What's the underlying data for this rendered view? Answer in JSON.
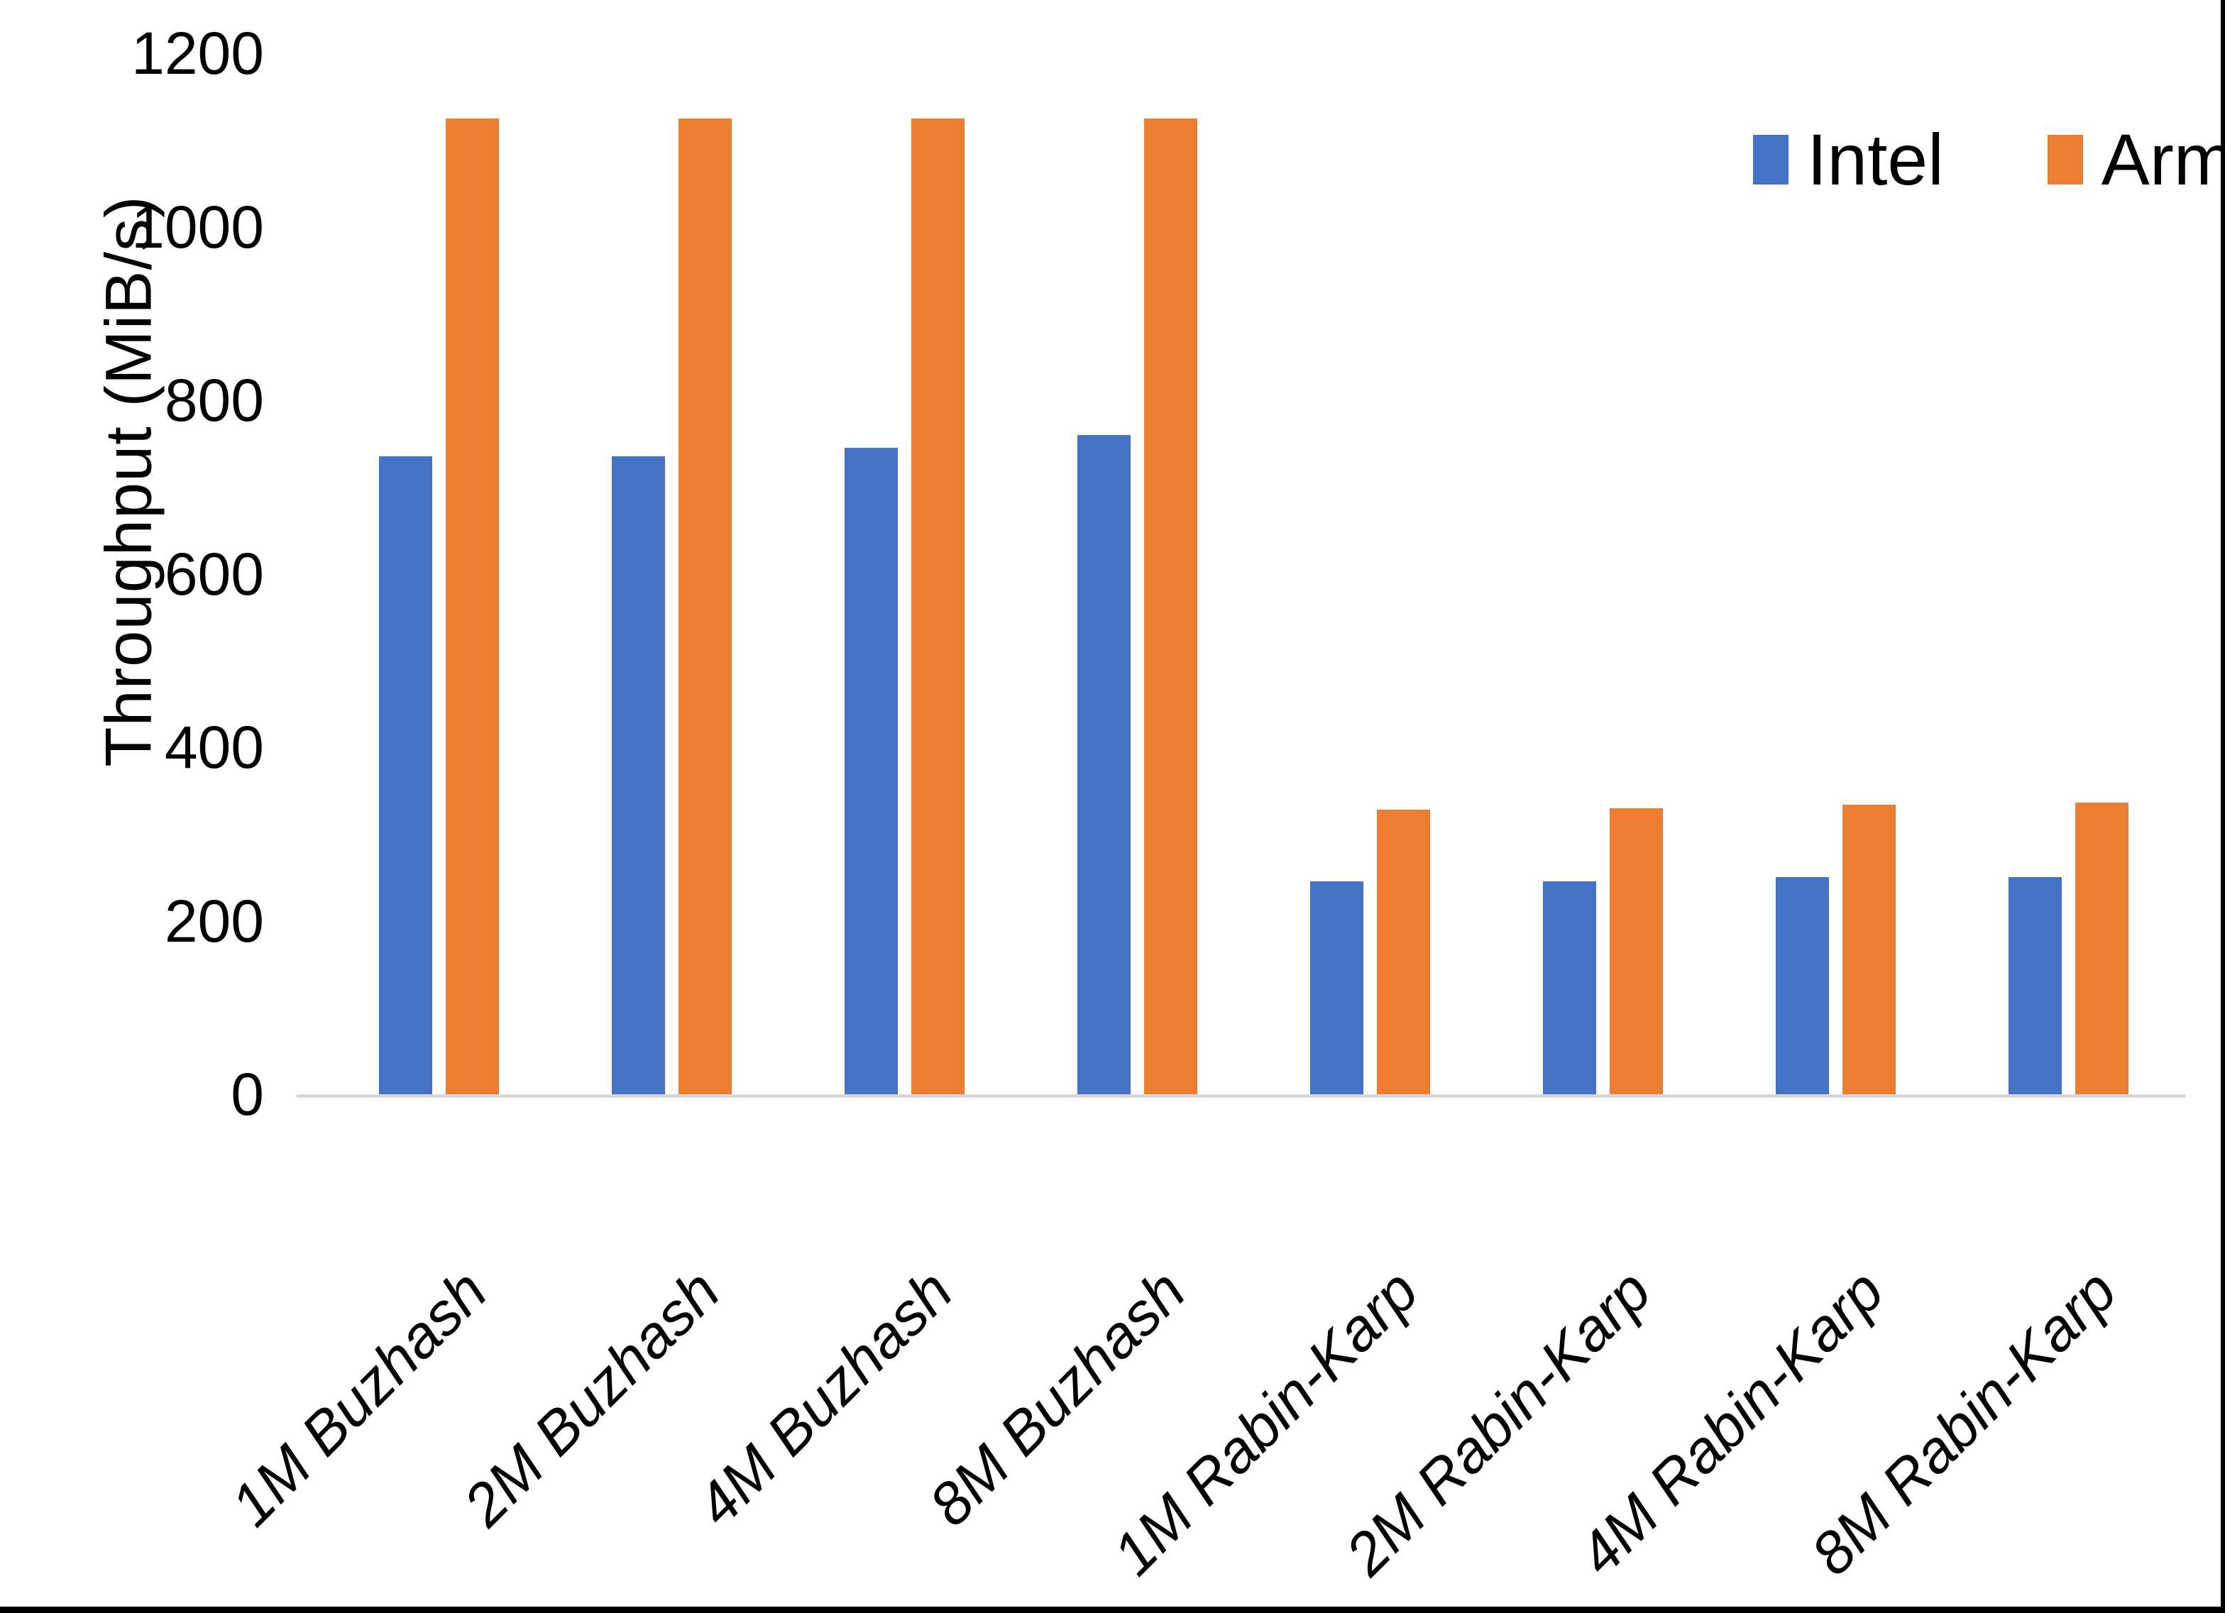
{
  "chart_data": {
    "type": "bar",
    "title": "",
    "xlabel": "",
    "ylabel": "Throughput (MiB/s)",
    "ylim": [
      0,
      1200
    ],
    "yticks": [
      0,
      200,
      400,
      600,
      800,
      1000,
      1200
    ],
    "grid": false,
    "legend_position": "top-right",
    "categories": [
      "1M Buzhash",
      "2M Buzhash",
      "4M Buzhash",
      "8M Buzhash",
      "1M Rabin-Karp",
      "2M Rabin-Karp",
      "4M Rabin-Karp",
      "8M Rabin-Karp"
    ],
    "series": [
      {
        "name": "Intel",
        "color": "#4472C4",
        "values": [
          735,
          735,
          745,
          760,
          245,
          245,
          250,
          250
        ]
      },
      {
        "name": "Arm",
        "color": "#ED7D31",
        "values": [
          1125,
          1125,
          1125,
          1125,
          328,
          330,
          334,
          336
        ]
      }
    ]
  },
  "colors": {
    "background": "#FFFFFF",
    "axis_line": "#D9D9D9",
    "text": "#000000",
    "frame": "#000000"
  }
}
